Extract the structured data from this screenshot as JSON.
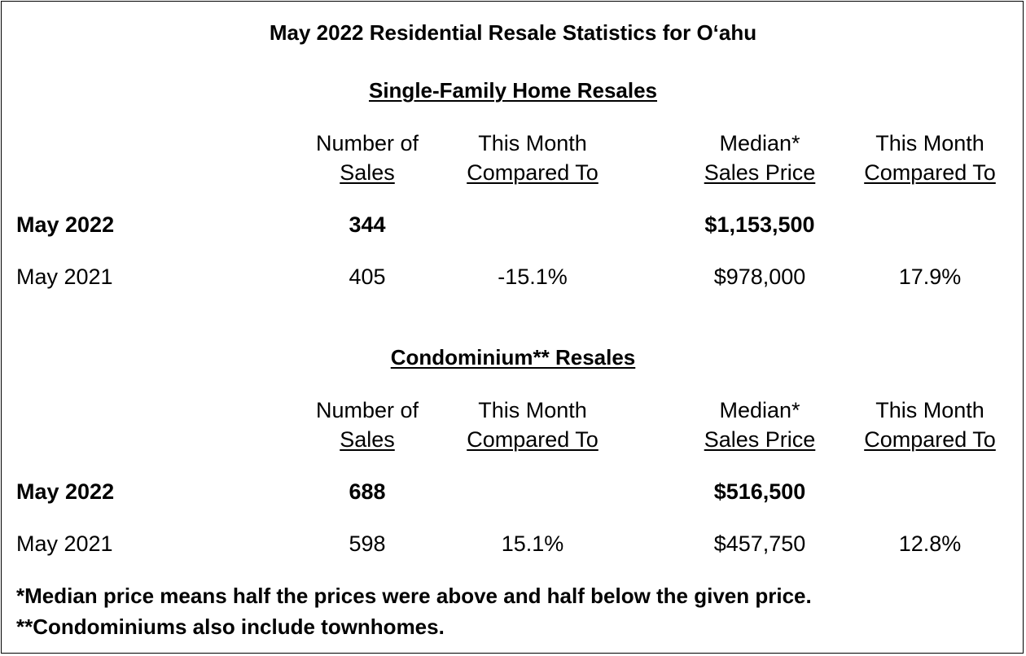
{
  "title": "May 2022 Residential Resale Statistics for O‘ahu",
  "col_headers": {
    "sales_l1": "Number of",
    "sales_l2": "Sales",
    "cmp_l1": "This Month",
    "cmp_l2": "Compared To",
    "median_l1": "Median*",
    "median_l2": "Sales Price",
    "cmp2_l1": "This Month",
    "cmp2_l2": "Compared To"
  },
  "sections": [
    {
      "heading": "Single-Family Home Resales",
      "rows": [
        {
          "period": "May 2022",
          "sales": "344",
          "sales_change": "",
          "median": "$1,153,500",
          "median_change": ""
        },
        {
          "period": "May 2021",
          "sales": "405",
          "sales_change": "-15.1%",
          "median": "$978,000",
          "median_change": "17.9%"
        }
      ]
    },
    {
      "heading": "Condominium** Resales",
      "rows": [
        {
          "period": "May 2022",
          "sales": "688",
          "sales_change": "",
          "median": "$516,500",
          "median_change": ""
        },
        {
          "period": "May 2021",
          "sales": "598",
          "sales_change": "15.1%",
          "median": "$457,750",
          "median_change": "12.8%"
        }
      ]
    }
  ],
  "footnotes": [
    "*Median price means half the prices were above and half below the given price.",
    "**Condominiums also include townhomes."
  ]
}
